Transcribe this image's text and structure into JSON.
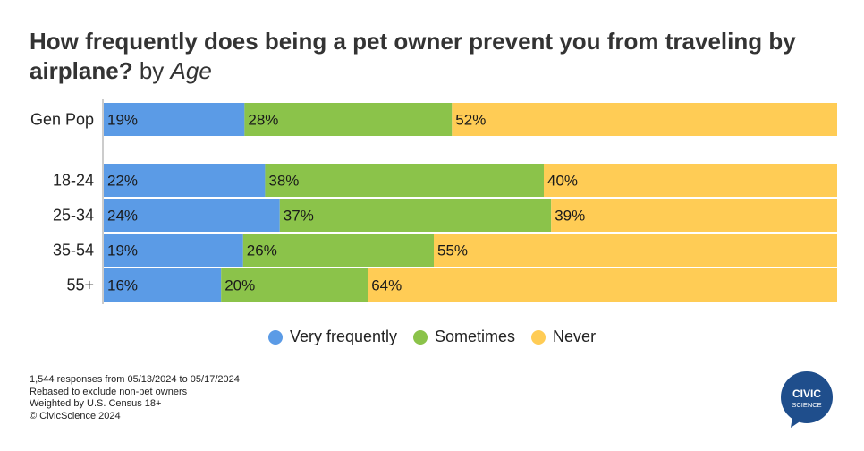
{
  "title": {
    "main": "How frequently does being a pet owner prevent you from traveling by airplane?",
    "by": "by",
    "dimension": "Age"
  },
  "chart_data": {
    "type": "bar",
    "orientation": "horizontal",
    "stacked": true,
    "normalized": true,
    "categories": [
      "Gen Pop",
      "18-24",
      "25-34",
      "35-54",
      "55+"
    ],
    "series": [
      {
        "name": "Very frequently",
        "values": [
          19,
          22,
          24,
          19,
          16
        ],
        "labels": [
          "19%",
          "22%",
          "24%",
          "19%",
          "16%"
        ],
        "color": "#5B9BE6"
      },
      {
        "name": "Sometimes",
        "values": [
          28,
          38,
          37,
          26,
          20
        ],
        "labels": [
          "28%",
          "38%",
          "37%",
          "26%",
          "20%"
        ],
        "color": "#8BC34A"
      },
      {
        "name": "Never",
        "values": [
          52,
          40,
          39,
          55,
          64
        ],
        "labels": [
          "52%",
          "40%",
          "39%",
          "55%",
          "64%"
        ],
        "color": "#FFCC55"
      }
    ],
    "legend_position": "bottom",
    "grid": false
  },
  "footnotes": [
    "1,544 responses from 05/13/2024 to 05/17/2024",
    "Rebased to exclude non-pet owners",
    "Weighted by U.S. Census 18+",
    "© CivicScience 2024"
  ],
  "logo": {
    "line1": "CIVIC",
    "line2": "SCIENCE",
    "color": "#1F4E8C"
  }
}
